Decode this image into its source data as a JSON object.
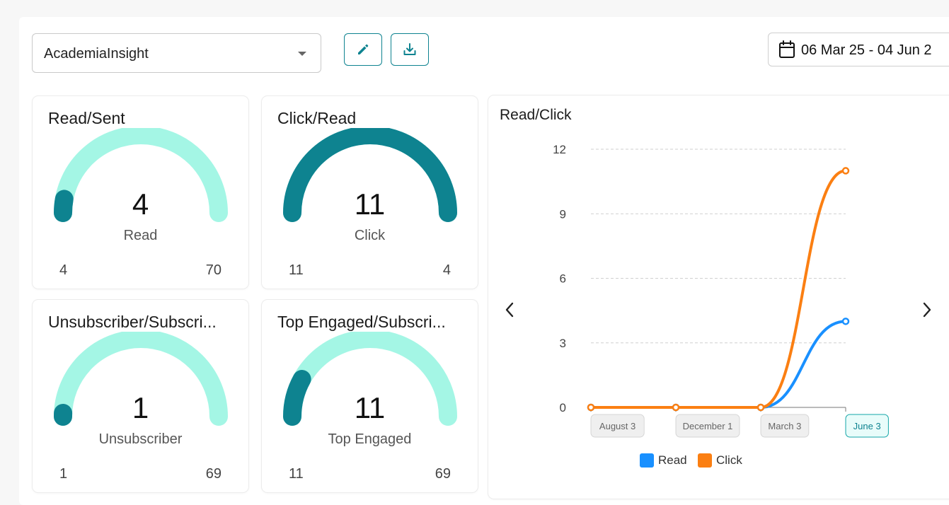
{
  "toolbar": {
    "account_select": "AcademiaInsight",
    "edit_icon": "pencil-icon",
    "download_icon": "download-icon",
    "date_range": "06 Mar 25 - 04 Jun 2"
  },
  "colors": {
    "teal_dark": "#0e8390",
    "teal_light": "#a4f6e5",
    "read": "#1990ff",
    "click": "#fb7f12"
  },
  "cards": [
    {
      "title": "Read/Sent",
      "value": "4",
      "label": "Read",
      "min": "4",
      "max": "70",
      "fraction": 0.057
    },
    {
      "title": "Click/Read",
      "value": "11",
      "label": "Click",
      "min": "11",
      "max": "4",
      "fraction": 1.0
    },
    {
      "title": "Unsubscriber/Subscri...",
      "value": "1",
      "label": "Unsubscriber",
      "min": "1",
      "max": "69",
      "fraction": 0.0145
    },
    {
      "title": "Top Engaged/Subscri...",
      "value": "11",
      "label": "Top Engaged",
      "min": "11",
      "max": "69",
      "fraction": 0.16
    }
  ],
  "chart_data": {
    "type": "line",
    "title": "Read/Click",
    "categories": [
      "August 3",
      "December 1",
      "March 3",
      "June 3"
    ],
    "active_category": "June 3",
    "ylim": [
      0,
      12
    ],
    "yticks": [
      "0",
      "3",
      "6",
      "9",
      "12"
    ],
    "grid": true,
    "legend_placement": "bottom",
    "series": [
      {
        "name": "Read",
        "values": [
          0,
          0,
          0,
          4
        ]
      },
      {
        "name": "Click",
        "values": [
          0,
          0,
          0,
          11
        ]
      }
    ]
  }
}
